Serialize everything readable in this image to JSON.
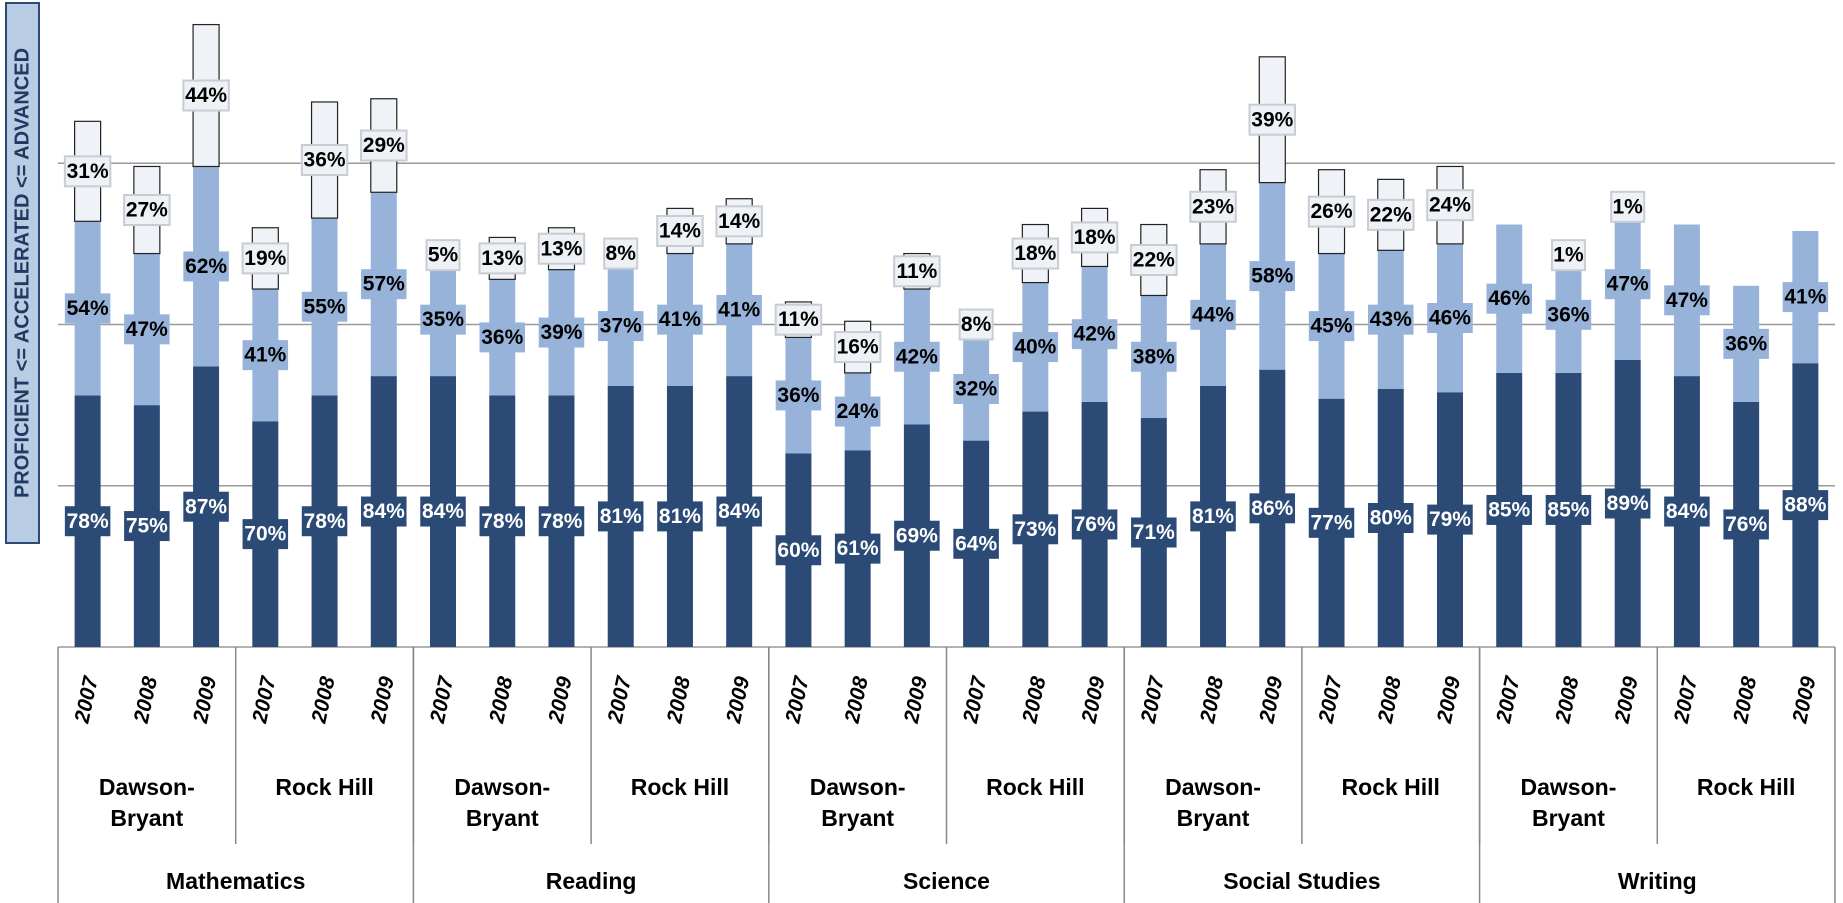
{
  "chart_data": {
    "type": "stacked-bar",
    "y_label": "PROFICIENT <= ACCELERATED <= ADVANCED",
    "categories": [
      "2007",
      "2008",
      "2009",
      "2007",
      "2008",
      "2009",
      "2007",
      "2008",
      "2009",
      "2007",
      "2008",
      "2009",
      "2007",
      "2008",
      "2009",
      "2007",
      "2008",
      "2009",
      "2007",
      "2008",
      "2009",
      "2007",
      "2008",
      "2009",
      "2007",
      "2008",
      "2009",
      "2007",
      "2008",
      "2009"
    ],
    "school_groups": [
      "Dawson-\nBryant",
      "Rock Hill",
      "Dawson-\nBryant",
      "Rock Hill",
      "Dawson-\nBryant",
      "Rock Hill",
      "Dawson-\nBryant",
      "Rock Hill",
      "Dawson-\nBryant",
      "Rock Hill"
    ],
    "subject_groups": [
      "Mathematics",
      "Reading",
      "Science",
      "Social Studies",
      "Writing"
    ],
    "series": [
      {
        "name": "Proficient",
        "color": "#2b4a75",
        "label_color": "#ffffff",
        "label_box": "#2b4a75",
        "values": [
          78,
          75,
          87,
          70,
          78,
          84,
          84,
          78,
          78,
          81,
          81,
          84,
          60,
          61,
          69,
          64,
          73,
          76,
          71,
          81,
          86,
          77,
          80,
          79,
          85,
          85,
          89,
          84,
          76,
          88
        ],
        "value_labels": [
          "78%",
          "75%",
          "87%",
          "70%",
          "78%",
          "84%",
          "84%",
          "78%",
          "78%",
          "81%",
          "81%",
          "84%",
          "60%",
          "61%",
          "69%",
          "64%",
          "73%",
          "76%",
          "71%",
          "81%",
          "86%",
          "77%",
          "80%",
          "79%",
          "85%",
          "85%",
          "89%",
          "84%",
          "76%",
          "88%"
        ]
      },
      {
        "name": "Accelerated",
        "color": "#97b3d9",
        "label_color": "#000000",
        "label_box": "#97b3d9",
        "values": [
          54,
          47,
          62,
          41,
          55,
          57,
          35,
          36,
          39,
          37,
          41,
          41,
          36,
          24,
          42,
          32,
          40,
          42,
          38,
          44,
          58,
          45,
          43,
          46,
          46,
          36,
          47,
          47,
          36,
          41
        ],
        "value_labels": [
          "54%",
          "47%",
          "62%",
          "41%",
          "55%",
          "57%",
          "35%",
          "36%",
          "39%",
          "37%",
          "41%",
          "41%",
          "36%",
          "24%",
          "42%",
          "32%",
          "40%",
          "42%",
          "38%",
          "44%",
          "58%",
          "45%",
          "43%",
          "46%",
          "46%",
          "36%",
          "47%",
          "47%",
          "36%",
          "41%"
        ]
      },
      {
        "name": "Advanced",
        "color": "#eff3f8",
        "label_color": "#000000",
        "label_box": "#eef1f5",
        "values": [
          31,
          27,
          44,
          19,
          36,
          29,
          5,
          13,
          13,
          8,
          14,
          14,
          11,
          16,
          11,
          8,
          18,
          18,
          22,
          23,
          39,
          26,
          22,
          24,
          null,
          1,
          1,
          null,
          null,
          null
        ],
        "value_labels": [
          "31%",
          "27%",
          "44%",
          "19%",
          "36%",
          "29%",
          "5%",
          "13%",
          "13%",
          "8%",
          "14%",
          "14%",
          "11%",
          "16%",
          "11%",
          "8%",
          "18%",
          "18%",
          "22%",
          "23%",
          "39%",
          "26%",
          "22%",
          "24%",
          null,
          "1%",
          "1%",
          null,
          null,
          null
        ]
      }
    ],
    "ylim": [
      0,
      200
    ],
    "yticks": [
      0,
      50,
      100,
      150
    ],
    "grid": true
  }
}
